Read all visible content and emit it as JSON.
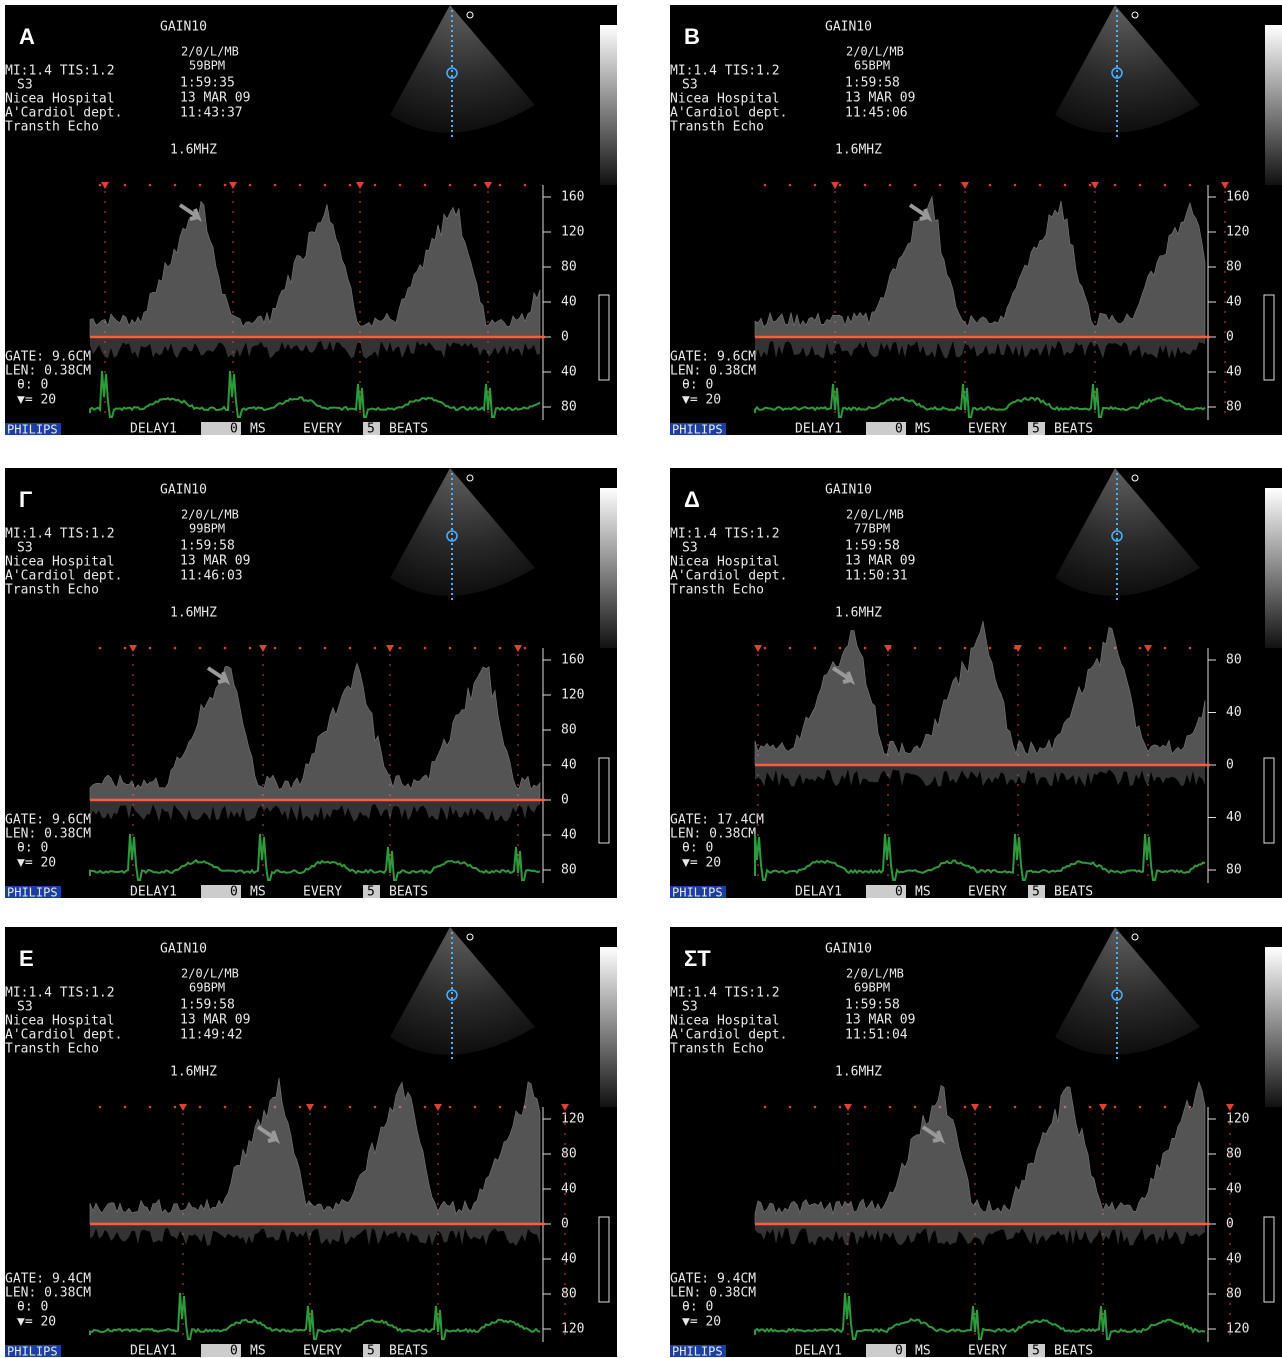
{
  "overlay": {
    "gain": "GAIN10",
    "mode": "2/0/L/MB",
    "mi": "MI:1.4 TIS:1.2",
    "probe": "S3",
    "hospital": "Nicea Hospital",
    "dept": "A'Cardiol dept.",
    "study": "Transth Echo",
    "freq": "1.6MHZ",
    "len": "LEN: 0.38CM",
    "theta": "θ: 0",
    "volume": "▼= 20",
    "brand": "PHILIPS",
    "delay": "DELAY1",
    "delay_value": "0",
    "ms": "MS",
    "every": "EVERY",
    "beats_value": "5",
    "beats": "BEATS"
  },
  "panels": [
    {
      "label": "A",
      "bpm": "59BPM",
      "clock": "1:59:35",
      "date": "13 MAR  09",
      "time": "11:43:37",
      "gate": "GATE:  9.6CM",
      "scale": [
        "160",
        "120",
        "80",
        "40",
        "0",
        "40",
        "80"
      ]
    },
    {
      "label": "B",
      "bpm": "65BPM",
      "clock": "1:59:58",
      "date": "13 MAR  09",
      "time": "11:45:06",
      "gate": "GATE:  9.6CM",
      "scale": [
        "160",
        "120",
        "80",
        "40",
        "0",
        "40",
        "80"
      ]
    },
    {
      "label": "Γ",
      "bpm": "99BPM",
      "clock": "1:59:58",
      "date": "13 MAR  09",
      "time": "11:46:03",
      "gate": "GATE:  9.6CM",
      "scale": [
        "160",
        "120",
        "80",
        "40",
        "0",
        "40",
        "80"
      ]
    },
    {
      "label": "Δ",
      "bpm": "77BPM",
      "clock": "1:59:58",
      "date": "13 MAR  09",
      "time": "11:50:31",
      "gate": "GATE: 17.4CM",
      "scale": [
        "80",
        "40",
        "0",
        "40",
        "80"
      ]
    },
    {
      "label": "Ε",
      "bpm": "69BPM",
      "clock": "1:59:58",
      "date": "13 MAR  09",
      "time": "11:49:42",
      "gate": "GATE:  9.4CM",
      "scale": [
        "120",
        "80",
        "40",
        "0",
        "40",
        "80",
        "120"
      ]
    },
    {
      "label": "ΣΤ",
      "bpm": "69BPM",
      "clock": "1:59:58",
      "date": "13 MAR  09",
      "time": "11:51:04",
      "gate": "GATE:  9.4CM",
      "scale": [
        "120",
        "80",
        "40",
        "0",
        "40",
        "80",
        "120"
      ]
    }
  ]
}
